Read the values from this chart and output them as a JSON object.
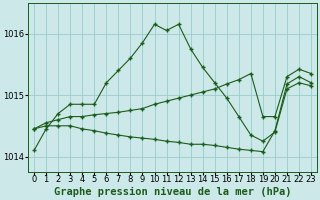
{
  "title": "Graphe pression niveau de la mer (hPa)",
  "bg_color": "#cce8e8",
  "grid_color": "#99cccc",
  "line_color": "#1a5c1a",
  "marker_color": "#1a5c1a",
  "xlim": [
    -0.5,
    23.5
  ],
  "ylim": [
    1013.75,
    1016.5
  ],
  "yticks": [
    1014,
    1015,
    1016
  ],
  "series": [
    {
      "x": [
        0,
        1,
        2,
        3,
        4,
        5,
        6,
        7,
        8,
        9,
        10,
        11,
        12,
        13,
        14,
        15,
        16,
        17,
        18,
        19,
        20,
        21,
        22,
        23
      ],
      "y": [
        1014.1,
        1014.45,
        1014.7,
        1014.85,
        1014.85,
        1014.85,
        1015.2,
        1015.4,
        1015.6,
        1015.85,
        1016.15,
        1016.05,
        1016.15,
        1015.75,
        1015.45,
        1015.2,
        1014.95,
        1014.65,
        1014.35,
        1014.25,
        1014.4,
        1015.1,
        1015.2,
        1015.15
      ]
    },
    {
      "x": [
        0,
        1,
        2,
        3,
        4,
        5,
        6,
        7,
        8,
        9,
        10,
        11,
        12,
        13,
        14,
        15,
        16,
        17,
        18,
        19,
        20,
        21,
        22,
        23
      ],
      "y": [
        1014.45,
        1014.55,
        1014.6,
        1014.65,
        1014.65,
        1014.68,
        1014.7,
        1014.72,
        1014.75,
        1014.78,
        1014.85,
        1014.9,
        1014.95,
        1015.0,
        1015.05,
        1015.1,
        1015.18,
        1015.25,
        1015.35,
        1014.65,
        1014.65,
        1015.3,
        1015.42,
        1015.35
      ]
    },
    {
      "x": [
        0,
        1,
        2,
        3,
        4,
        5,
        6,
        7,
        8,
        9,
        10,
        11,
        12,
        13,
        14,
        15,
        16,
        17,
        18,
        19,
        20,
        21,
        22,
        23
      ],
      "y": [
        1014.45,
        1014.5,
        1014.5,
        1014.5,
        1014.45,
        1014.42,
        1014.38,
        1014.35,
        1014.32,
        1014.3,
        1014.28,
        1014.25,
        1014.23,
        1014.2,
        1014.2,
        1014.18,
        1014.15,
        1014.12,
        1014.1,
        1014.08,
        1014.42,
        1015.18,
        1015.3,
        1015.2
      ]
    }
  ],
  "title_fontsize": 7.5,
  "tick_fontsize": 6,
  "ylabel_fontsize": 6
}
